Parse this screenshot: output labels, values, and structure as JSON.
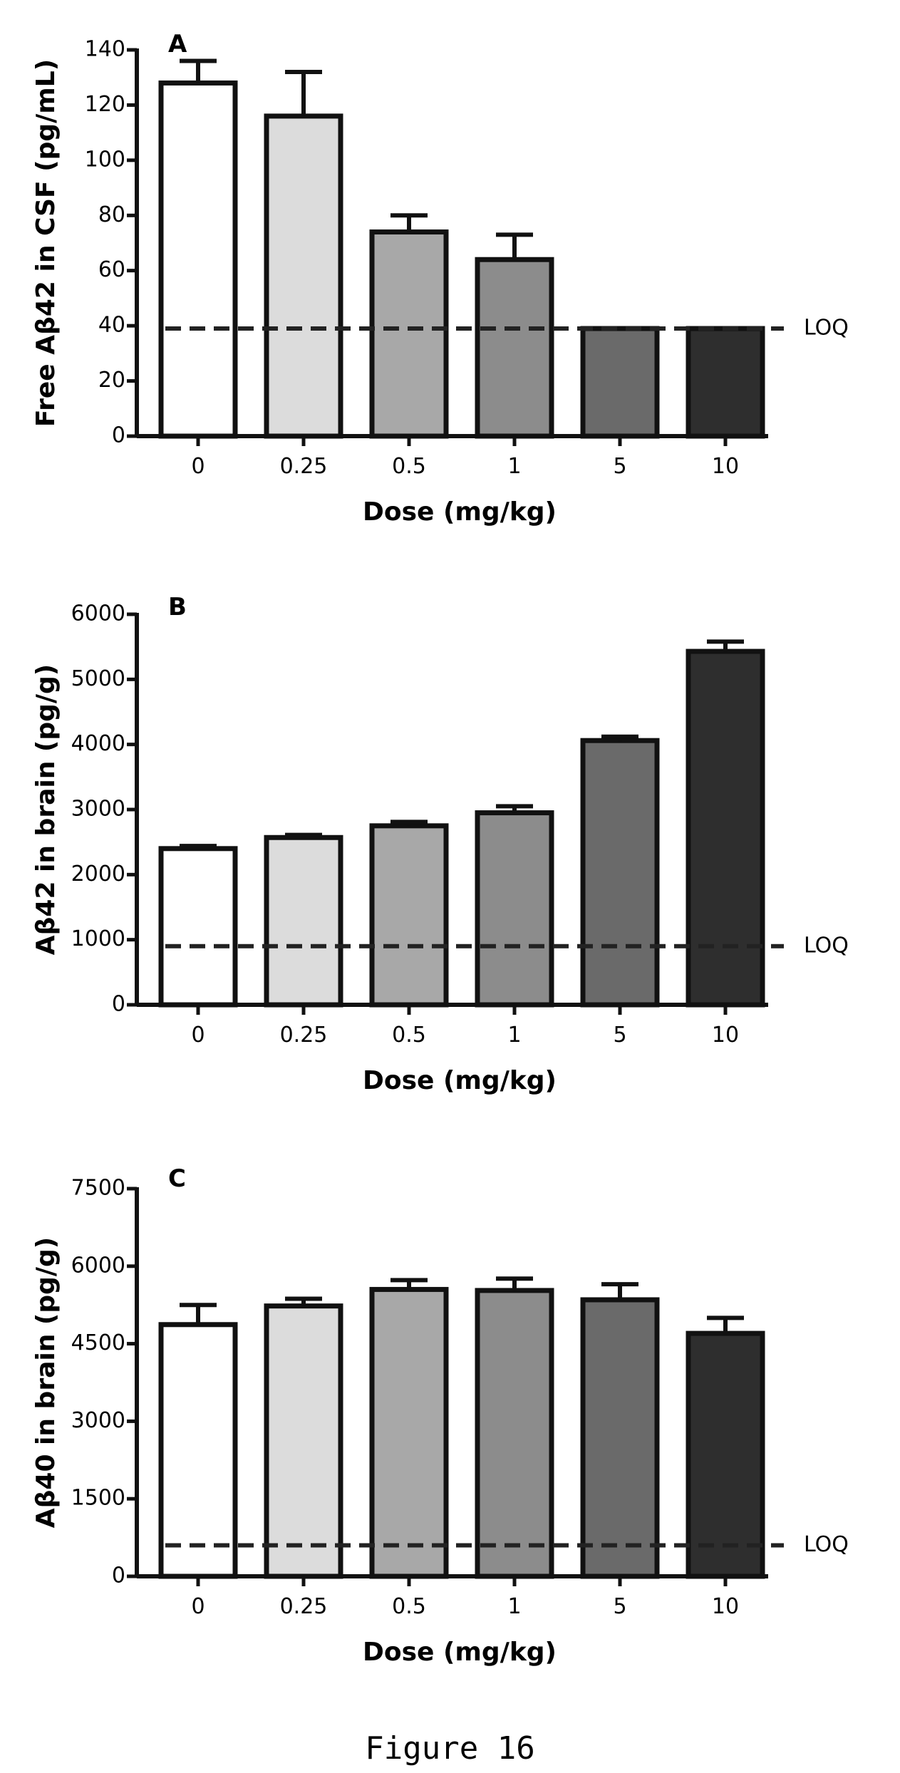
{
  "figure_caption": "Figure 16",
  "chart_data": [
    {
      "type": "bar",
      "panel": "A",
      "categories": [
        "0",
        "0.25",
        "0.5",
        "1",
        "5",
        "10"
      ],
      "values": [
        128,
        116,
        74,
        64,
        39,
        39
      ],
      "errors": [
        8,
        16,
        6,
        9,
        0,
        0
      ],
      "xlabel": "Dose (mg/kg)",
      "ylabel": "Free Aβ42 in CSF (pg/mL)",
      "ylim": [
        0,
        140
      ],
      "yticks": [
        0,
        20,
        40,
        60,
        80,
        100,
        120,
        140
      ],
      "reference_line": {
        "value": 39,
        "label": "LOQ",
        "style": "dashed"
      },
      "bar_fills": [
        "#ffffff",
        "#dcdcdc",
        "#a8a8a8",
        "#8c8c8c",
        "#6a6a6a",
        "#2e2e2e"
      ],
      "grid": false
    },
    {
      "type": "bar",
      "panel": "B",
      "categories": [
        "0",
        "0.25",
        "0.5",
        "1",
        "5",
        "10"
      ],
      "values": [
        2400,
        2570,
        2750,
        2950,
        4060,
        5430
      ],
      "errors": [
        40,
        40,
        60,
        100,
        60,
        150
      ],
      "xlabel": "Dose (mg/kg)",
      "ylabel": "Aβ42 in brain (pg/g)",
      "ylim": [
        0,
        6000
      ],
      "yticks": [
        0,
        1000,
        2000,
        3000,
        4000,
        5000,
        6000
      ],
      "reference_line": {
        "value": 900,
        "label": "LOQ",
        "style": "dashed"
      },
      "bar_fills": [
        "#ffffff",
        "#dcdcdc",
        "#a8a8a8",
        "#8c8c8c",
        "#6a6a6a",
        "#2e2e2e"
      ],
      "grid": false
    },
    {
      "type": "bar",
      "panel": "C",
      "categories": [
        "0",
        "0.25",
        "0.5",
        "1",
        "5",
        "10"
      ],
      "values": [
        4870,
        5230,
        5550,
        5530,
        5350,
        4700
      ],
      "errors": [
        380,
        140,
        180,
        230,
        300,
        300
      ],
      "xlabel": "Dose (mg/kg)",
      "ylabel": "Aβ40 in brain (pg/g)",
      "ylim": [
        0,
        7500
      ],
      "yticks": [
        0,
        1500,
        3000,
        4500,
        6000,
        7500
      ],
      "reference_line": {
        "value": 600,
        "label": "LOQ",
        "style": "dashed"
      },
      "bar_fills": [
        "#ffffff",
        "#dcdcdc",
        "#a8a8a8",
        "#8c8c8c",
        "#6a6a6a",
        "#2e2e2e"
      ],
      "grid": false
    }
  ]
}
